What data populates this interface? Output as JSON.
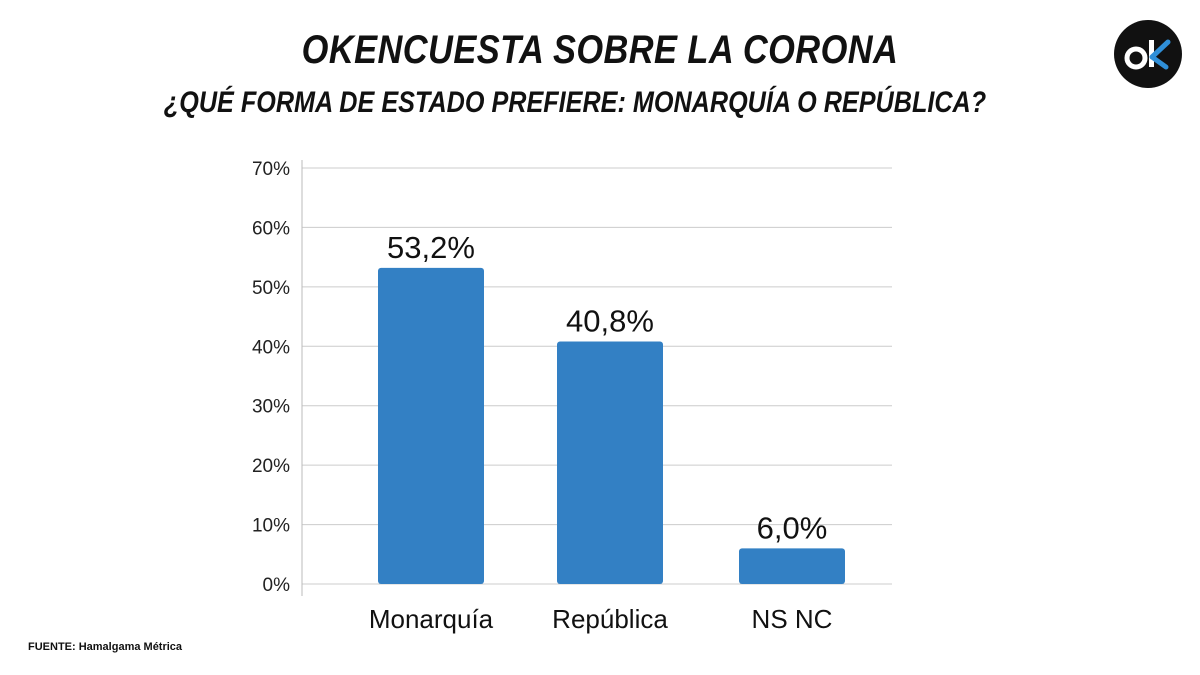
{
  "header": {
    "title": "OKENCUESTA SOBRE LA CORONA",
    "subtitle": "¿QUÉ FORMA DE ESTADO PREFIERE: MONARQUÍA O REPÚBLICA?"
  },
  "logo": {
    "text": "ok",
    "icon": "ok-logo-icon",
    "bg_color": "#111111",
    "accent_color": "#2f8fd8"
  },
  "footer": {
    "source": "FUENTE: Hamalgama Métrica"
  },
  "chart_data": {
    "type": "bar",
    "categories": [
      "Monarquía",
      "República",
      "NS NC"
    ],
    "values": [
      53.2,
      40.8,
      6.0
    ],
    "data_labels": [
      "53,2%",
      "40,8%",
      "6,0%"
    ],
    "ylim": [
      0,
      70
    ],
    "yticks": [
      0,
      10,
      20,
      30,
      40,
      50,
      60,
      70
    ],
    "ytick_labels": [
      "0%",
      "10%",
      "20%",
      "30%",
      "40%",
      "50%",
      "60%",
      "70%"
    ],
    "grid": true,
    "bar_color": "#3380c4",
    "grid_color": "#cccccc"
  }
}
